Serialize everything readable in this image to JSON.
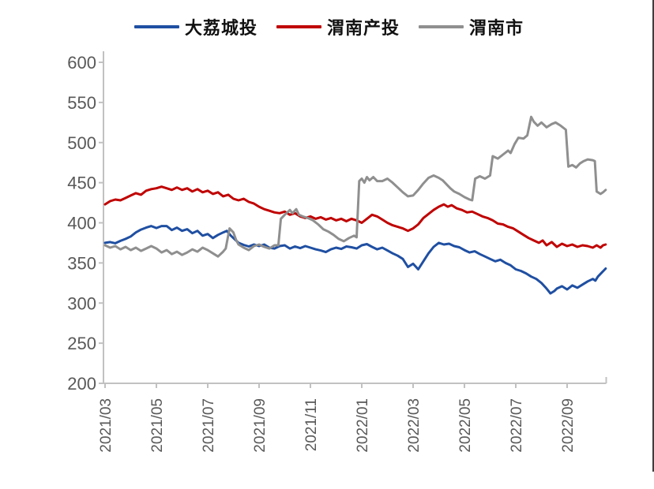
{
  "colors": {
    "axis": "#c1c1c1",
    "tick_label": "#595959",
    "page_border": "#3d3d3d",
    "background": "#ffffff"
  },
  "chart_data": {
    "type": "line",
    "title": "",
    "xlabel": "",
    "ylabel": "",
    "ylim": [
      200,
      600
    ],
    "y_ticks": [
      600,
      550,
      500,
      450,
      400,
      350,
      300,
      250,
      200
    ],
    "x_tick_labels": [
      "2021/03",
      "2021/05",
      "2021/07",
      "2021/09",
      "2021/11",
      "2022/01",
      "2022/03",
      "2022/05",
      "2022/07",
      "2022/09"
    ],
    "x_tick_positions": [
      0,
      2,
      4,
      6,
      8,
      10,
      12,
      14,
      16,
      18
    ],
    "x_unit": "months since 2021/03",
    "legend_position": "top",
    "grid": false,
    "series": [
      {
        "id": "dali-chengtou",
        "name": "大荔城投",
        "color": "#1f4fa2",
        "points": [
          [
            0,
            375
          ],
          [
            0.2,
            376
          ],
          [
            0.4,
            374.5
          ],
          [
            0.6,
            377.5
          ],
          [
            0.8,
            380
          ],
          [
            1.0,
            383
          ],
          [
            1.2,
            388
          ],
          [
            1.4,
            391.5
          ],
          [
            1.6,
            394
          ],
          [
            1.8,
            396
          ],
          [
            2.0,
            393.5
          ],
          [
            2.2,
            396
          ],
          [
            2.4,
            396
          ],
          [
            2.6,
            391
          ],
          [
            2.8,
            394
          ],
          [
            3.0,
            390
          ],
          [
            3.2,
            392
          ],
          [
            3.4,
            387
          ],
          [
            3.6,
            390
          ],
          [
            3.8,
            384
          ],
          [
            4.0,
            386
          ],
          [
            4.2,
            381
          ],
          [
            4.4,
            385
          ],
          [
            4.6,
            388
          ],
          [
            4.74,
            390
          ],
          [
            4.9,
            384
          ],
          [
            5.0,
            381
          ],
          [
            5.1,
            378
          ],
          [
            5.2,
            375
          ],
          [
            5.4,
            372.5
          ],
          [
            5.6,
            370.5
          ],
          [
            5.8,
            373
          ],
          [
            6.0,
            371
          ],
          [
            6.2,
            373
          ],
          [
            6.4,
            369
          ],
          [
            6.6,
            368
          ],
          [
            6.8,
            371
          ],
          [
            7.0,
            372
          ],
          [
            7.2,
            368
          ],
          [
            7.4,
            370.5
          ],
          [
            7.6,
            368.5
          ],
          [
            7.8,
            371
          ],
          [
            8.0,
            369
          ],
          [
            8.2,
            367
          ],
          [
            8.4,
            365.5
          ],
          [
            8.6,
            363.5
          ],
          [
            8.8,
            367
          ],
          [
            9.0,
            369
          ],
          [
            9.2,
            367.5
          ],
          [
            9.4,
            370.5
          ],
          [
            9.6,
            369.5
          ],
          [
            9.8,
            368
          ],
          [
            10.0,
            372
          ],
          [
            10.2,
            373.5
          ],
          [
            10.4,
            370
          ],
          [
            10.6,
            367
          ],
          [
            10.8,
            369
          ],
          [
            11.0,
            365.5
          ],
          [
            11.2,
            362
          ],
          [
            11.4,
            359
          ],
          [
            11.6,
            355
          ],
          [
            11.8,
            345
          ],
          [
            12.0,
            349
          ],
          [
            12.2,
            342
          ],
          [
            12.4,
            352
          ],
          [
            12.6,
            362
          ],
          [
            12.8,
            370
          ],
          [
            13.0,
            375
          ],
          [
            13.2,
            373
          ],
          [
            13.4,
            374
          ],
          [
            13.6,
            371
          ],
          [
            13.8,
            369.5
          ],
          [
            14.0,
            366
          ],
          [
            14.2,
            363
          ],
          [
            14.4,
            364.5
          ],
          [
            14.6,
            361
          ],
          [
            14.8,
            358
          ],
          [
            15.0,
            355
          ],
          [
            15.2,
            352
          ],
          [
            15.4,
            354
          ],
          [
            15.6,
            350
          ],
          [
            15.8,
            347
          ],
          [
            16.0,
            342
          ],
          [
            16.2,
            340
          ],
          [
            16.4,
            337
          ],
          [
            16.6,
            333
          ],
          [
            16.8,
            330
          ],
          [
            17.0,
            325
          ],
          [
            17.2,
            318
          ],
          [
            17.35,
            312
          ],
          [
            17.5,
            315
          ],
          [
            17.6,
            318
          ],
          [
            17.8,
            321
          ],
          [
            18.0,
            317
          ],
          [
            18.2,
            322
          ],
          [
            18.4,
            319
          ],
          [
            18.6,
            323
          ],
          [
            18.8,
            327
          ],
          [
            19.0,
            330
          ],
          [
            19.1,
            328
          ],
          [
            19.2,
            333
          ],
          [
            19.35,
            338
          ],
          [
            19.5,
            343
          ]
        ]
      },
      {
        "id": "weinan-chantou",
        "name": "渭南产投",
        "color": "#c00000",
        "points": [
          [
            0,
            423
          ],
          [
            0.2,
            427
          ],
          [
            0.4,
            429
          ],
          [
            0.6,
            428
          ],
          [
            0.8,
            431
          ],
          [
            1.0,
            434
          ],
          [
            1.2,
            437
          ],
          [
            1.4,
            435
          ],
          [
            1.6,
            440
          ],
          [
            1.8,
            442
          ],
          [
            2.0,
            443
          ],
          [
            2.2,
            445
          ],
          [
            2.4,
            443
          ],
          [
            2.6,
            441
          ],
          [
            2.8,
            444
          ],
          [
            3.0,
            441
          ],
          [
            3.2,
            443
          ],
          [
            3.4,
            439
          ],
          [
            3.6,
            442
          ],
          [
            3.8,
            438
          ],
          [
            4.0,
            440
          ],
          [
            4.2,
            436
          ],
          [
            4.4,
            438
          ],
          [
            4.6,
            433
          ],
          [
            4.8,
            435
          ],
          [
            5.0,
            430
          ],
          [
            5.2,
            428
          ],
          [
            5.4,
            430
          ],
          [
            5.6,
            426
          ],
          [
            5.8,
            424
          ],
          [
            6.0,
            420
          ],
          [
            6.2,
            417
          ],
          [
            6.4,
            415
          ],
          [
            6.6,
            413
          ],
          [
            6.8,
            412
          ],
          [
            7.0,
            414
          ],
          [
            7.2,
            410
          ],
          [
            7.4,
            412
          ],
          [
            7.6,
            408
          ],
          [
            7.8,
            406
          ],
          [
            8.0,
            408
          ],
          [
            8.2,
            405
          ],
          [
            8.4,
            407
          ],
          [
            8.6,
            404
          ],
          [
            8.8,
            406
          ],
          [
            9.0,
            403
          ],
          [
            9.2,
            405
          ],
          [
            9.4,
            402
          ],
          [
            9.6,
            405
          ],
          [
            9.8,
            403
          ],
          [
            10.0,
            400
          ],
          [
            10.2,
            405
          ],
          [
            10.4,
            410
          ],
          [
            10.6,
            408
          ],
          [
            10.8,
            404
          ],
          [
            11.0,
            400
          ],
          [
            11.2,
            397
          ],
          [
            11.4,
            395
          ],
          [
            11.6,
            393
          ],
          [
            11.8,
            390
          ],
          [
            12.0,
            393
          ],
          [
            12.2,
            398
          ],
          [
            12.4,
            406
          ],
          [
            12.6,
            411
          ],
          [
            12.8,
            416
          ],
          [
            13.0,
            420
          ],
          [
            13.2,
            423
          ],
          [
            13.35,
            420
          ],
          [
            13.5,
            422
          ],
          [
            13.7,
            418
          ],
          [
            13.9,
            416
          ],
          [
            14.1,
            413
          ],
          [
            14.3,
            414
          ],
          [
            14.5,
            411
          ],
          [
            14.7,
            408
          ],
          [
            14.9,
            406
          ],
          [
            15.1,
            403
          ],
          [
            15.3,
            399
          ],
          [
            15.5,
            398
          ],
          [
            15.7,
            395
          ],
          [
            15.9,
            393
          ],
          [
            16.1,
            389
          ],
          [
            16.3,
            385
          ],
          [
            16.5,
            381
          ],
          [
            16.7,
            378
          ],
          [
            16.9,
            375
          ],
          [
            17.05,
            378
          ],
          [
            17.2,
            372
          ],
          [
            17.4,
            376
          ],
          [
            17.6,
            370
          ],
          [
            17.8,
            374
          ],
          [
            18.0,
            371
          ],
          [
            18.2,
            373
          ],
          [
            18.4,
            370
          ],
          [
            18.6,
            372
          ],
          [
            18.8,
            371
          ],
          [
            19.0,
            369
          ],
          [
            19.15,
            372
          ],
          [
            19.3,
            369
          ],
          [
            19.4,
            372
          ],
          [
            19.5,
            373
          ]
        ]
      },
      {
        "id": "weinan-city",
        "name": "渭南市",
        "color": "#8f8f8f",
        "points": [
          [
            0,
            372
          ],
          [
            0.2,
            369
          ],
          [
            0.4,
            371
          ],
          [
            0.6,
            367
          ],
          [
            0.8,
            370
          ],
          [
            1.0,
            366
          ],
          [
            1.2,
            369
          ],
          [
            1.4,
            365
          ],
          [
            1.6,
            368
          ],
          [
            1.8,
            371
          ],
          [
            2.0,
            368
          ],
          [
            2.2,
            363
          ],
          [
            2.4,
            366
          ],
          [
            2.6,
            361
          ],
          [
            2.8,
            364
          ],
          [
            3.0,
            360
          ],
          [
            3.2,
            363
          ],
          [
            3.4,
            367
          ],
          [
            3.6,
            364
          ],
          [
            3.8,
            369
          ],
          [
            4.0,
            366
          ],
          [
            4.2,
            362
          ],
          [
            4.4,
            358
          ],
          [
            4.6,
            364
          ],
          [
            4.7,
            368
          ],
          [
            4.85,
            393
          ],
          [
            5.0,
            388
          ],
          [
            5.1,
            379
          ],
          [
            5.2,
            373
          ],
          [
            5.4,
            369
          ],
          [
            5.6,
            366
          ],
          [
            5.8,
            371
          ],
          [
            6.0,
            373
          ],
          [
            6.2,
            370
          ],
          [
            6.4,
            368
          ],
          [
            6.6,
            372
          ],
          [
            6.75,
            372
          ],
          [
            6.85,
            405
          ],
          [
            7.0,
            410
          ],
          [
            7.2,
            416
          ],
          [
            7.3,
            412
          ],
          [
            7.45,
            417
          ],
          [
            7.55,
            410
          ],
          [
            7.7,
            408
          ],
          [
            7.9,
            406
          ],
          [
            8.1,
            403
          ],
          [
            8.3,
            398
          ],
          [
            8.5,
            392
          ],
          [
            8.7,
            389
          ],
          [
            8.9,
            385
          ],
          [
            9.1,
            380
          ],
          [
            9.3,
            377
          ],
          [
            9.5,
            381
          ],
          [
            9.7,
            384
          ],
          [
            9.8,
            382
          ],
          [
            9.9,
            452
          ],
          [
            10.0,
            455
          ],
          [
            10.1,
            450
          ],
          [
            10.2,
            457
          ],
          [
            10.3,
            453
          ],
          [
            10.45,
            457
          ],
          [
            10.6,
            452
          ],
          [
            10.8,
            452
          ],
          [
            11.0,
            455
          ],
          [
            11.2,
            450
          ],
          [
            11.4,
            444
          ],
          [
            11.6,
            438
          ],
          [
            11.8,
            433
          ],
          [
            12.0,
            434
          ],
          [
            12.2,
            441
          ],
          [
            12.4,
            449
          ],
          [
            12.6,
            456
          ],
          [
            12.8,
            459
          ],
          [
            13.0,
            456
          ],
          [
            13.15,
            453
          ],
          [
            13.3,
            448
          ],
          [
            13.45,
            443
          ],
          [
            13.6,
            439
          ],
          [
            13.8,
            436
          ],
          [
            14.0,
            432
          ],
          [
            14.2,
            429
          ],
          [
            14.3,
            428
          ],
          [
            14.42,
            455
          ],
          [
            14.6,
            458
          ],
          [
            14.8,
            455
          ],
          [
            15.0,
            459
          ],
          [
            15.1,
            483
          ],
          [
            15.3,
            480
          ],
          [
            15.5,
            485
          ],
          [
            15.7,
            490
          ],
          [
            15.8,
            487
          ],
          [
            15.95,
            498
          ],
          [
            16.1,
            506
          ],
          [
            16.3,
            505
          ],
          [
            16.45,
            509
          ],
          [
            16.6,
            532
          ],
          [
            16.7,
            526
          ],
          [
            16.85,
            521
          ],
          [
            17.0,
            525
          ],
          [
            17.2,
            519
          ],
          [
            17.4,
            523
          ],
          [
            17.55,
            525
          ],
          [
            17.75,
            521
          ],
          [
            17.95,
            516
          ],
          [
            18.05,
            470
          ],
          [
            18.2,
            472
          ],
          [
            18.35,
            469
          ],
          [
            18.5,
            474
          ],
          [
            18.65,
            477
          ],
          [
            18.8,
            479
          ],
          [
            19.0,
            478
          ],
          [
            19.08,
            477
          ],
          [
            19.15,
            439
          ],
          [
            19.3,
            436
          ],
          [
            19.4,
            438
          ],
          [
            19.5,
            441
          ]
        ]
      }
    ]
  }
}
